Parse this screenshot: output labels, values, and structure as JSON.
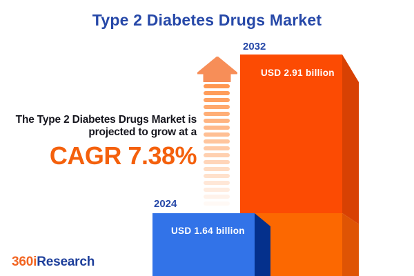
{
  "title": "Type 2 Diabetes Drugs Market",
  "annotation": {
    "line1": "The Type 2 Diabetes Drugs Market is",
    "line2": "projected to grow at a",
    "cagr": "CAGR 7.38%"
  },
  "chart_data": {
    "type": "bar",
    "title": "Type 2 Diabetes Drugs Market",
    "categories": [
      "2024",
      "2032"
    ],
    "values": [
      1.64,
      2.91
    ],
    "unit": "USD billion",
    "cagr_percent": 7.38,
    "legend": "none",
    "axes": "none",
    "bars": [
      {
        "year": "2024",
        "value": 1.64,
        "value_label": "USD 1.64 billion",
        "front_color": "#3273E8",
        "side_color": "#04308C"
      },
      {
        "year": "2032",
        "value": 2.91,
        "value_label": "USD 2.91 billion",
        "front_color_top": "#FC4B03",
        "front_color_bottom": "#FC6801",
        "side_color_top": "#D84103",
        "side_color_bottom": "#DF5404"
      }
    ]
  },
  "logo": {
    "part1": "360i",
    "part2": "Research"
  },
  "colors": {
    "brand_blue": "#2648A8",
    "accent_orange": "#F4600C",
    "arrow_head": "#F78E58",
    "arrow_stripe": "#FF9750",
    "text_dark": "#16161E",
    "background": "#FFFFFF"
  }
}
